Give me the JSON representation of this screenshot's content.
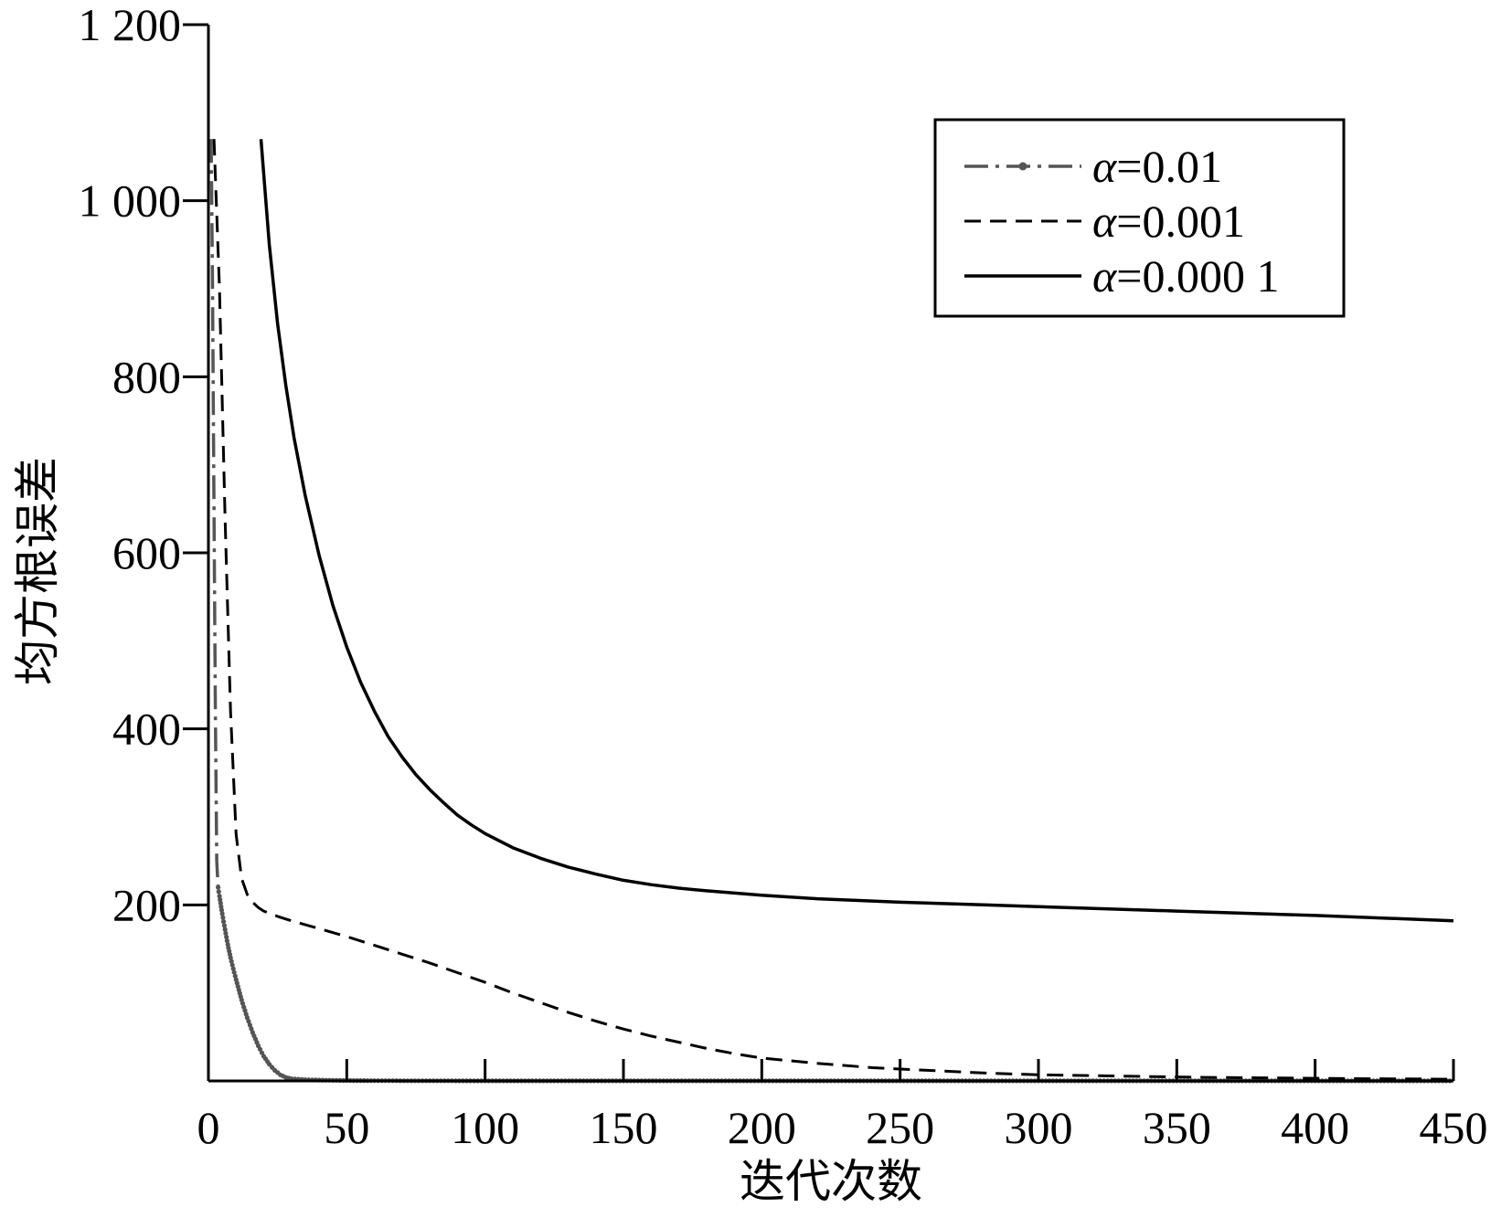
{
  "chart_data": {
    "type": "line",
    "title": "",
    "xlabel": "迭代次数",
    "ylabel": "均方根误差",
    "xlim": [
      0,
      450
    ],
    "ylim": [
      0,
      1200
    ],
    "x_ticks": [
      0,
      50,
      100,
      150,
      200,
      250,
      300,
      350,
      400,
      450
    ],
    "x_tick_labels": [
      "0",
      "50",
      "100",
      "150",
      "200",
      "250",
      "300",
      "350",
      "400",
      "450"
    ],
    "y_ticks": [
      200,
      400,
      600,
      800,
      1000,
      1200
    ],
    "y_tick_labels": [
      "200",
      "400",
      "600",
      "800",
      "1 000",
      "1 200"
    ],
    "grid": false,
    "legend_position": "top-right",
    "series": [
      {
        "name": "α=0.01",
        "legend_symbol": "α",
        "legend_value": "=0.01",
        "style": "dash-dot",
        "color": "#555555",
        "x": [
          1,
          1.5,
          2,
          2.5,
          3,
          3.5,
          4,
          5,
          6,
          7,
          8,
          10,
          12,
          14,
          16,
          18,
          20,
          22,
          24,
          26,
          28,
          30,
          35,
          40,
          50,
          60,
          80,
          100,
          150,
          200,
          300,
          450
        ],
        "y": [
          1070,
          900,
          650,
          420,
          250,
          220,
          210,
          190,
          172,
          155,
          140,
          115,
          92,
          72,
          55,
          40,
          28,
          19,
          12,
          7,
          4,
          2.5,
          1.5,
          1,
          0.5,
          0.3,
          0.2,
          0.1,
          0.1,
          0.1,
          0.1,
          0.1
        ]
      },
      {
        "name": "α=0.001",
        "legend_symbol": "α",
        "legend_value": "=0.001",
        "style": "dashed",
        "color": "#000000",
        "x": [
          2,
          4,
          6,
          8,
          10,
          12,
          14,
          16,
          18,
          20,
          25,
          30,
          40,
          50,
          60,
          70,
          80,
          90,
          100,
          110,
          120,
          130,
          140,
          150,
          160,
          170,
          180,
          190,
          200,
          220,
          240,
          260,
          280,
          300,
          320,
          340,
          360,
          380,
          400,
          420,
          450
        ],
        "y": [
          1070,
          900,
          640,
          420,
          280,
          230,
          212,
          203,
          197,
          193,
          187,
          182,
          173,
          164,
          154,
          144,
          134,
          123,
          112,
          100,
          89,
          78,
          68,
          59,
          51,
          44,
          37,
          31,
          26,
          20,
          15,
          12,
          9,
          7,
          6,
          5,
          4,
          3.5,
          3,
          2.5,
          2
        ]
      },
      {
        "name": "α=0.000 1",
        "legend_symbol": "α",
        "legend_value": "=0.000 1",
        "style": "solid",
        "color": "#000000",
        "x": [
          19,
          22,
          25,
          28,
          31,
          35,
          40,
          45,
          50,
          55,
          60,
          65,
          70,
          75,
          80,
          85,
          90,
          95,
          100,
          110,
          120,
          130,
          140,
          150,
          160,
          170,
          180,
          200,
          220,
          250,
          280,
          300,
          350,
          400,
          450
        ],
        "y": [
          1070,
          950,
          860,
          790,
          730,
          665,
          597,
          540,
          493,
          453,
          420,
          391,
          368,
          348,
          331,
          316,
          302,
          291,
          281,
          265,
          253,
          243,
          235,
          228,
          223,
          219,
          216,
          211,
          207,
          203,
          200,
          198,
          193,
          188,
          182
        ]
      }
    ]
  }
}
